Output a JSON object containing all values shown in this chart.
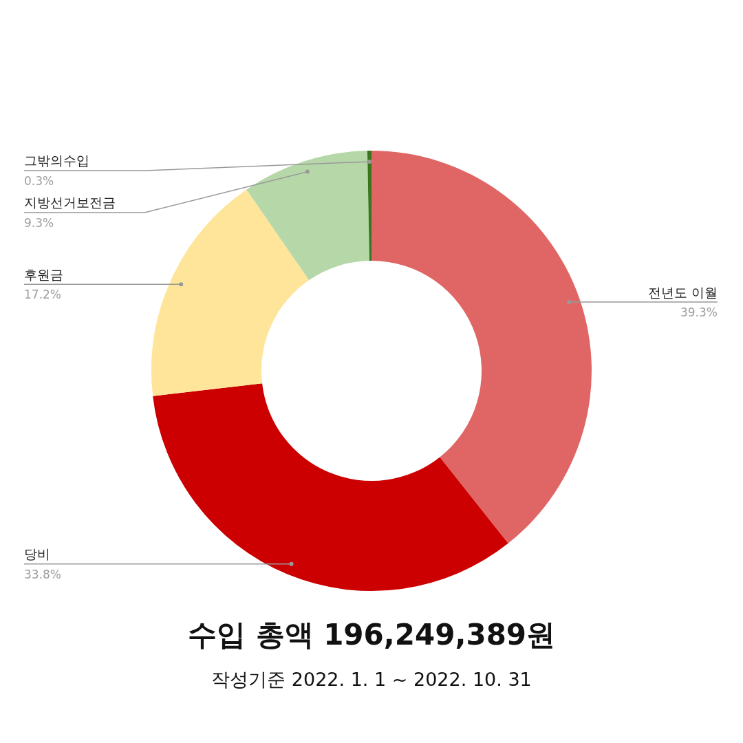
{
  "chart_data": {
    "type": "donut",
    "title": "수입 총액 196,249,389원",
    "subtitle": "작성기준 2022. 1. 1 ~ 2022. 10. 31",
    "categories": [
      "전년도 이월",
      "당비",
      "후원금",
      "지방선거보전금",
      "그밖의수입"
    ],
    "values": [
      39.3,
      33.8,
      17.2,
      9.3,
      0.3
    ],
    "colors": [
      "#e06666",
      "#cc0000",
      "#ffe599",
      "#b6d7a8",
      "#38761d"
    ],
    "value_labels": [
      "39.3%",
      "33.8%",
      "17.2%",
      "9.3%",
      "0.3%"
    ]
  }
}
